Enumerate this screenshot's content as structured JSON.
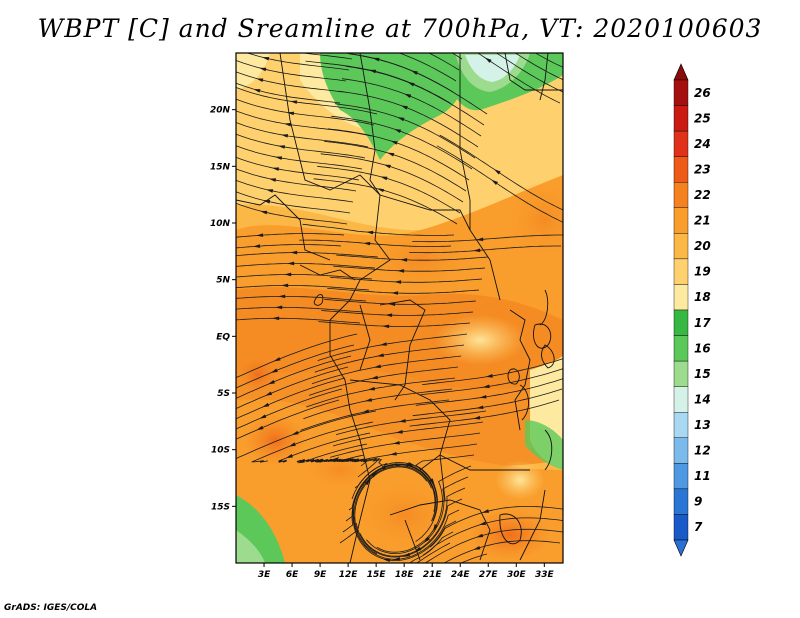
{
  "title": "WBPT [C] and Sreamline at 700hPa, VT: 2020100603",
  "footer": "GrADS: IGES/COLA",
  "map": {
    "lon_range": [
      0,
      35
    ],
    "lat_range": [
      -20,
      25
    ],
    "lat_labels": [
      "20N",
      "15N",
      "10N",
      "5N",
      "EQ",
      "5S",
      "10S",
      "15S"
    ],
    "lat_values": [
      20,
      15,
      10,
      5,
      0,
      -5,
      -10,
      -15
    ],
    "lon_labels": [
      "3E",
      "6E",
      "9E",
      "12E",
      "15E",
      "18E",
      "21E",
      "24E",
      "27E",
      "30E",
      "33E"
    ],
    "lon_values": [
      3,
      6,
      9,
      12,
      15,
      18,
      21,
      24,
      27,
      30,
      33
    ]
  },
  "colorbar": {
    "labels": [
      "26",
      "25",
      "24",
      "23",
      "22",
      "21",
      "20",
      "19",
      "18",
      "17",
      "16",
      "15",
      "14",
      "13",
      "12",
      "11",
      "9",
      "7"
    ],
    "colors": [
      "#a50f0f",
      "#c91b12",
      "#e0321a",
      "#ee5a17",
      "#f58220",
      "#f99d2c",
      "#fbb847",
      "#fed06e",
      "#fee9a0",
      "#36b843",
      "#5cc85a",
      "#9ddb8e",
      "#d5f2e8",
      "#a9d8f2",
      "#7bbaeb",
      "#4f99e2",
      "#2b76d5",
      "#1a5ac8"
    ],
    "top_arrow_color": "#8b0a0a",
    "bottom_arrow_color": "#2a6fd3"
  }
}
